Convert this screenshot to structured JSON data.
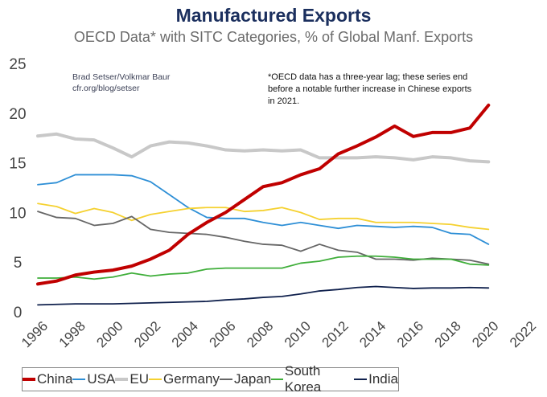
{
  "chart_data": {
    "type": "line",
    "title": "Manufactured Exports",
    "subtitle": "OECD Data* with SITC Categories, % of Global Manf. Exports",
    "credit_line1": "Brad Setser/Volkmar Baur",
    "credit_line2": "cfr.org/blog/setser",
    "note": "*OECD data has a three-year lag; these series end before a notable further increase in Chinese exports in 2021.",
    "xlim": [
      1996,
      2022
    ],
    "ylim": [
      0,
      25
    ],
    "x_ticks": [
      "1996",
      "1998",
      "2000",
      "2002",
      "2004",
      "2006",
      "2008",
      "2010",
      "2012",
      "2014",
      "2016",
      "2018",
      "2020",
      "2022"
    ],
    "y_ticks": [
      "0",
      "5",
      "10",
      "15",
      "20",
      "25"
    ],
    "grid": false,
    "legend_position": "bottom",
    "x": [
      1996,
      1997,
      1998,
      1999,
      2000,
      2001,
      2002,
      2003,
      2004,
      2005,
      2006,
      2007,
      2008,
      2009,
      2010,
      2011,
      2012,
      2013,
      2014,
      2015,
      2016,
      2017,
      2018,
      2019,
      2020
    ],
    "series": [
      {
        "name": "China",
        "color": "#c00000",
        "width": 4,
        "values": [
          2.8,
          3.1,
          3.7,
          4.0,
          4.2,
          4.6,
          5.3,
          6.2,
          7.8,
          9.0,
          10.0,
          11.3,
          12.6,
          13.0,
          13.8,
          14.4,
          15.9,
          16.7,
          17.6,
          18.7,
          17.65,
          18.05,
          18.05,
          18.5,
          20.8
        ]
      },
      {
        "name": "USA",
        "color": "#2e8fd6",
        "width": 1.8,
        "values": [
          12.8,
          13.0,
          13.8,
          13.8,
          13.8,
          13.7,
          13.1,
          11.8,
          10.5,
          9.5,
          9.4,
          9.4,
          9.0,
          8.7,
          9.0,
          8.7,
          8.4,
          8.7,
          8.6,
          8.5,
          8.6,
          8.5,
          7.9,
          7.8,
          6.8
        ]
      },
      {
        "name": "EU",
        "color": "#c8c8c8",
        "width": 4,
        "values": [
          17.7,
          17.9,
          17.4,
          17.3,
          16.5,
          15.6,
          16.7,
          17.1,
          17.0,
          16.7,
          16.3,
          16.2,
          16.3,
          16.2,
          16.3,
          15.5,
          15.5,
          15.5,
          15.6,
          15.5,
          15.3,
          15.6,
          15.5,
          15.2,
          15.1
        ]
      },
      {
        "name": "Germany",
        "color": "#f5d130",
        "width": 1.8,
        "values": [
          10.9,
          10.6,
          9.9,
          10.4,
          10.0,
          9.2,
          9.8,
          10.1,
          10.4,
          10.5,
          10.5,
          10.1,
          10.2,
          10.5,
          10.0,
          9.3,
          9.4,
          9.4,
          9.0,
          9.0,
          9.0,
          8.9,
          8.8,
          8.5,
          8.3
        ]
      },
      {
        "name": "Japan",
        "color": "#666666",
        "width": 1.8,
        "values": [
          10.1,
          9.5,
          9.4,
          8.7,
          8.9,
          9.6,
          8.3,
          8.0,
          7.9,
          7.8,
          7.5,
          7.1,
          6.8,
          6.7,
          6.1,
          6.8,
          6.2,
          6.0,
          5.3,
          5.3,
          5.2,
          5.4,
          5.3,
          5.2,
          4.8
        ]
      },
      {
        "name": "South Korea",
        "color": "#3fae3a",
        "width": 1.8,
        "values": [
          3.4,
          3.4,
          3.5,
          3.3,
          3.5,
          3.9,
          3.6,
          3.8,
          3.9,
          4.3,
          4.4,
          4.4,
          4.4,
          4.4,
          4.9,
          5.1,
          5.5,
          5.6,
          5.6,
          5.5,
          5.3,
          5.3,
          5.3,
          4.8,
          4.7
        ]
      },
      {
        "name": "India",
        "color": "#10214d",
        "width": 1.8,
        "values": [
          0.7,
          0.75,
          0.8,
          0.8,
          0.8,
          0.85,
          0.9,
          0.95,
          1.0,
          1.05,
          1.2,
          1.3,
          1.45,
          1.55,
          1.8,
          2.1,
          2.25,
          2.45,
          2.55,
          2.45,
          2.35,
          2.4,
          2.4,
          2.45,
          2.4
        ]
      }
    ]
  }
}
